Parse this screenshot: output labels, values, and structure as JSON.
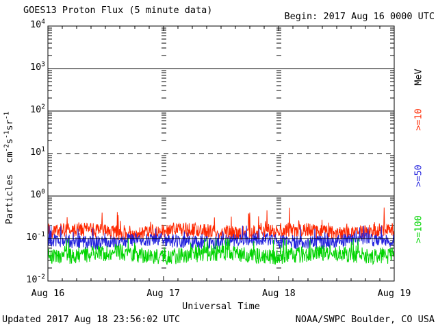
{
  "header": {
    "title": "GOES13 Proton Flux (5 minute data)",
    "begin": "Begin: 2017 Aug 16 0000 UTC"
  },
  "footer": {
    "updated": "Updated 2017 Aug 18 23:56:02 UTC",
    "credit": "NOAA/SWPC Boulder, CO USA"
  },
  "legend": {
    "unit": "MeV",
    "unit_color": "#000000"
  },
  "chart_data": {
    "type": "line",
    "title": "GOES13 Proton Flux (5 minute data)",
    "xlabel": "Universal Time",
    "ylabel": "Particles cm⁻²s⁻¹sr⁻¹",
    "ylabel_parts": [
      {
        "text": "Particles  cm"
      },
      {
        "sup": "-2"
      },
      {
        "text": "s"
      },
      {
        "sup": "-1"
      },
      {
        "text": "sr"
      },
      {
        "sup": "-1"
      }
    ],
    "x_axis": {
      "label": "Universal Time",
      "days": 3,
      "tick_labels": [
        "Aug 16",
        "Aug 17",
        "Aug 18",
        "Aug 19"
      ],
      "minor_ticks_per_day": 8
    },
    "y_axis": {
      "scale": "log",
      "log10_range": [
        -2,
        4
      ],
      "tick_exponents": [
        4,
        3,
        2,
        1,
        0,
        -1,
        -2
      ]
    },
    "grid": {
      "solid_line_exponents": [
        3,
        2,
        0,
        -1
      ],
      "dashed_line_exponents": [
        1
      ],
      "day_boundary_minor_dashes": [
        1,
        2
      ]
    },
    "cadence_minutes": 5,
    "points_per_series": 864,
    "series": [
      {
        "name": ">=10",
        "unit": "MeV",
        "color": "#ff2800",
        "typical_flux": 0.15,
        "approx_flux_range": [
          0.09,
          0.55
        ],
        "synth": {
          "log10_base": -0.83,
          "log10_jitter": 0.17,
          "spike_prob": 0.07,
          "spike_log10": 0.52,
          "clamp_log10": [
            -1.05,
            -0.27
          ],
          "seed": 20170816
        }
      },
      {
        "name": ">=50",
        "unit": "MeV",
        "color": "#2222dd",
        "typical_flux": 0.09,
        "approx_flux_range": [
          0.04,
          0.2
        ],
        "synth": {
          "log10_base": -1.06,
          "log10_jitter": 0.16,
          "spike_prob": 0.09,
          "spike_log10": 0.32,
          "clamp_log10": [
            -1.45,
            -0.7
          ],
          "seed": 5050
        }
      },
      {
        "name": ">=100",
        "unit": "MeV",
        "color": "#00d400",
        "typical_flux": 0.045,
        "approx_flux_range": [
          0.018,
          0.12
        ],
        "synth": {
          "log10_base": -1.38,
          "log10_jitter": 0.19,
          "spike_prob": 0.11,
          "spike_log10": 0.42,
          "clamp_log10": [
            -1.76,
            -1.0
          ],
          "seed": 100100
        }
      }
    ]
  }
}
